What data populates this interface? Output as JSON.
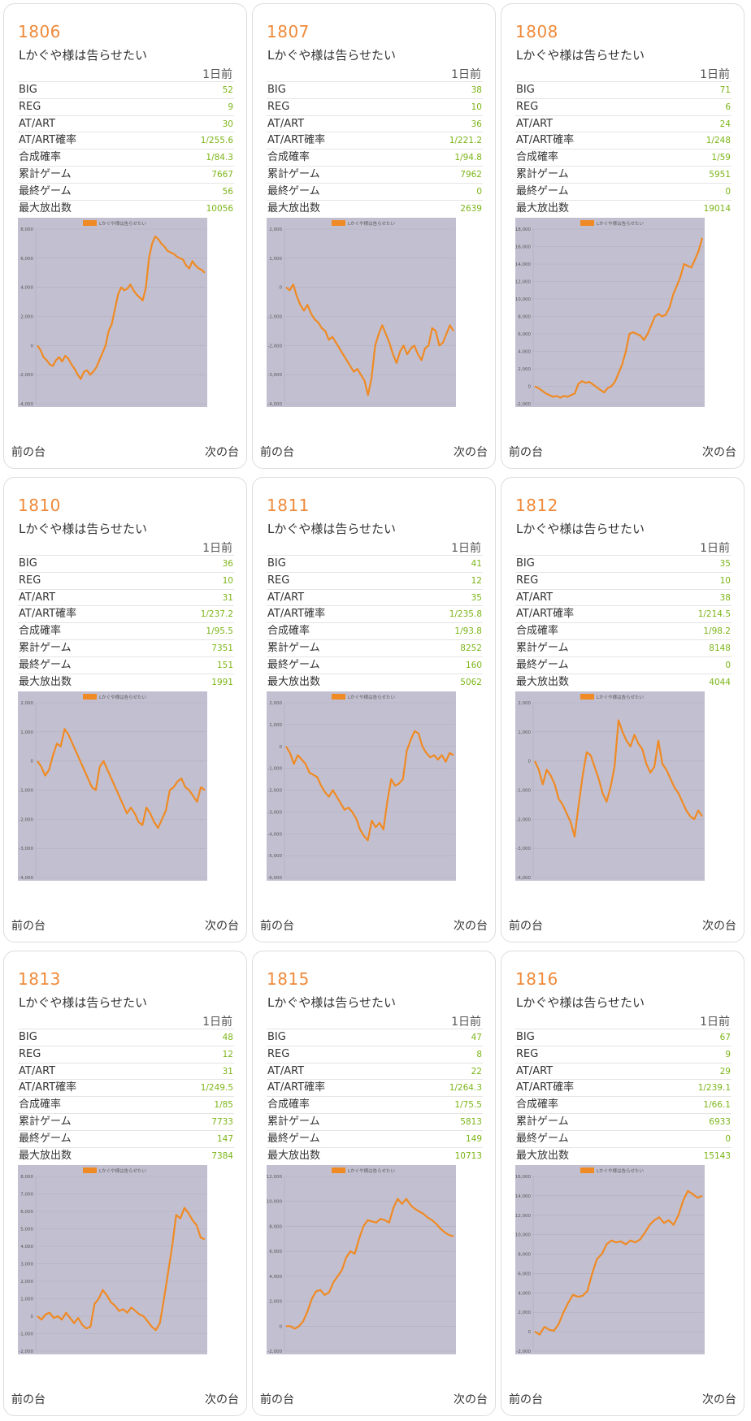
{
  "common": {
    "machine_title": "Lかぐや様は告らせたい",
    "day_label": "1日前",
    "prev_label": "前の台",
    "next_label": "次の台",
    "legend_label": "Lかぐや様は告らせたい",
    "stat_labels": [
      "BIG",
      "REG",
      "AT/ART",
      "AT/ART確率",
      "合成確率",
      "累計ゲーム",
      "最終ゲーム",
      "最大放出数"
    ],
    "colors": {
      "accent": "#ef8a3a",
      "value": "#7cb518",
      "line": "#f08a24",
      "plot_bg": "#c2c0d0"
    }
  },
  "cards": [
    {
      "machine_no": "1806",
      "stats": [
        "52",
        "9",
        "30",
        "1/255.6",
        "1/84.3",
        "7667",
        "56",
        "10056"
      ],
      "chart_data": {
        "type": "line",
        "legend": "Lかぐや様は告らせたい",
        "grid": true,
        "ylim": [
          -4000,
          8000
        ],
        "y_ticks": [
          "-4,000",
          "-2,000",
          "0",
          "2,000",
          "4,000",
          "6,000",
          "8,000"
        ],
        "series": [
          {
            "name": "Lかぐや様は告らせたい",
            "values": [
              0,
              -300,
              -800,
              -1000,
              -1300,
              -1400,
              -1000,
              -800,
              -1100,
              -700,
              -900,
              -1300,
              -1600,
              -2000,
              -2300,
              -1800,
              -1700,
              -2000,
              -1800,
              -1500,
              -1000,
              -500,
              0,
              1000,
              1500,
              2500,
              3500,
              4000,
              3800,
              3900,
              4200,
              3800,
              3500,
              3300,
              3100,
              4000,
              6000,
              7000,
              7500,
              7300,
              7000,
              6800,
              6500,
              6400,
              6300,
              6100,
              6000,
              5900,
              5500,
              5300,
              5800,
              5500,
              5300,
              5200,
              5000
            ]
          }
        ]
      }
    },
    {
      "machine_no": "1807",
      "stats": [
        "38",
        "10",
        "36",
        "1/221.2",
        "1/94.8",
        "7962",
        "0",
        "2639"
      ],
      "chart_data": {
        "type": "line",
        "legend": "Lかぐや様は告らせたい",
        "grid": true,
        "ylim": [
          -4000,
          2000
        ],
        "y_ticks": [
          "-4,000",
          "-3,000",
          "-2,000",
          "-1,000",
          "0",
          "1,000",
          "2,000"
        ],
        "series": [
          {
            "name": "Lかぐや様は告らせたい",
            "values": [
              0,
              -100,
              100,
              -300,
              -600,
              -800,
              -600,
              -900,
              -1100,
              -1200,
              -1400,
              -1500,
              -1800,
              -1700,
              -1900,
              -2100,
              -2300,
              -2500,
              -2700,
              -2900,
              -2800,
              -3000,
              -3200,
              -3700,
              -3100,
              -2000,
              -1600,
              -1300,
              -1600,
              -1900,
              -2300,
              -2600,
              -2200,
              -2000,
              -2300,
              -2100,
              -2000,
              -2300,
              -2500,
              -2100,
              -2000,
              -1400,
              -1500,
              -2000,
              -1900,
              -1600,
              -1300,
              -1500
            ]
          }
        ]
      }
    },
    {
      "machine_no": "1808",
      "stats": [
        "71",
        "6",
        "24",
        "1/248",
        "1/59",
        "5951",
        "0",
        "19014"
      ],
      "chart_data": {
        "type": "line",
        "legend": "Lかぐや様は告らせたい",
        "grid": true,
        "ylim": [
          -2000,
          18000
        ],
        "y_ticks": [
          "-2,000",
          "0",
          "2,000",
          "4,000",
          "6,000",
          "8,000",
          "10,000",
          "12,000",
          "14,000",
          "16,000",
          "18,000"
        ],
        "series": [
          {
            "name": "Lかぐや様は告らせたい",
            "values": [
              0,
              -200,
              -500,
              -800,
              -1000,
              -1200,
              -1100,
              -1300,
              -1100,
              -1200,
              -1000,
              -800,
              300,
              600,
              400,
              500,
              200,
              -100,
              -400,
              -700,
              -200,
              0,
              500,
              1500,
              2500,
              4000,
              6000,
              6200,
              6000,
              5800,
              5300,
              6000,
              7000,
              8000,
              8300,
              8000,
              8200,
              9000,
              10500,
              11500,
              12500,
              14000,
              13800,
              13600,
              14500,
              15500,
              17000
            ]
          }
        ]
      }
    },
    {
      "machine_no": "1810",
      "stats": [
        "36",
        "10",
        "31",
        "1/237.2",
        "1/95.5",
        "7351",
        "151",
        "1991"
      ],
      "chart_data": {
        "type": "line",
        "legend": "Lかぐや様は告らせたい",
        "grid": true,
        "ylim": [
          -4000,
          2000
        ],
        "y_ticks": [
          "-4,000",
          "-3,000",
          "-2,000",
          "-1,000",
          "0",
          "1,000",
          "2,000"
        ],
        "series": [
          {
            "name": "Lかぐや様は告らせたい",
            "values": [
              0,
              -200,
              -500,
              -300,
              200,
              600,
              500,
              1100,
              900,
              600,
              300,
              0,
              -300,
              -600,
              -900,
              -1000,
              -200,
              0,
              -300,
              -600,
              -900,
              -1200,
              -1500,
              -1800,
              -1600,
              -1800,
              -2100,
              -2200,
              -1600,
              -1800,
              -2100,
              -2300,
              -2000,
              -1700,
              -1000,
              -900,
              -700,
              -600,
              -900,
              -1000,
              -1200,
              -1400,
              -900,
              -1000
            ]
          }
        ]
      }
    },
    {
      "machine_no": "1811",
      "stats": [
        "41",
        "12",
        "35",
        "1/235.8",
        "1/93.8",
        "8252",
        "160",
        "5062"
      ],
      "chart_data": {
        "type": "line",
        "legend": "Lかぐや様は告らせたい",
        "grid": true,
        "ylim": [
          -6000,
          2000
        ],
        "y_ticks": [
          "-6,000",
          "-5,000",
          "-4,000",
          "-3,000",
          "-2,000",
          "-1,000",
          "0",
          "1,000",
          "2,000"
        ],
        "series": [
          {
            "name": "Lかぐや様は告らせたい",
            "values": [
              0,
              -300,
              -800,
              -400,
              -600,
              -800,
              -1200,
              -1300,
              -1400,
              -1800,
              -2100,
              -2300,
              -2000,
              -2300,
              -2600,
              -2900,
              -2800,
              -3000,
              -3300,
              -3800,
              -4100,
              -4300,
              -3400,
              -3700,
              -3500,
              -3800,
              -2500,
              -1500,
              -1800,
              -1700,
              -1500,
              -200,
              300,
              700,
              600,
              0,
              -300,
              -500,
              -400,
              -600,
              -400,
              -700,
              -300,
              -400
            ]
          }
        ]
      }
    },
    {
      "machine_no": "1812",
      "stats": [
        "35",
        "10",
        "38",
        "1/214.5",
        "1/98.2",
        "8148",
        "0",
        "4044"
      ],
      "chart_data": {
        "type": "line",
        "legend": "Lかぐや様は告らせたい",
        "grid": true,
        "ylim": [
          -4000,
          2000
        ],
        "y_ticks": [
          "-4,000",
          "-3,000",
          "-2,000",
          "-1,000",
          "0",
          "1,000",
          "2,000"
        ],
        "series": [
          {
            "name": "Lかぐや様は告らせたい",
            "values": [
              0,
              -300,
              -800,
              -300,
              -500,
              -800,
              -1300,
              -1500,
              -1800,
              -2100,
              -2600,
              -1500,
              -500,
              300,
              200,
              -200,
              -600,
              -1100,
              -1400,
              -900,
              -200,
              1400,
              1000,
              700,
              500,
              900,
              600,
              400,
              -100,
              -400,
              -200,
              700,
              -100,
              -300,
              -600,
              -900,
              -1100,
              -1400,
              -1700,
              -1900,
              -2000,
              -1700,
              -1900
            ]
          }
        ]
      }
    },
    {
      "machine_no": "1813",
      "stats": [
        "48",
        "12",
        "31",
        "1/249.5",
        "1/85",
        "7733",
        "147",
        "7384"
      ],
      "chart_data": {
        "type": "line",
        "legend": "Lかぐや様は告らせたい",
        "grid": true,
        "ylim": [
          -2000,
          8000
        ],
        "y_ticks": [
          "-2,000",
          "-1,000",
          "0",
          "1,000",
          "2,000",
          "3,000",
          "4,000",
          "5,000",
          "6,000",
          "7,000",
          "8,000"
        ],
        "series": [
          {
            "name": "Lかぐや様は告らせたい",
            "values": [
              0,
              -200,
              100,
              200,
              -100,
              0,
              -200,
              200,
              -100,
              -400,
              -100,
              -500,
              -700,
              -600,
              700,
              1000,
              1500,
              1200,
              800,
              600,
              300,
              400,
              200,
              500,
              300,
              100,
              0,
              -300,
              -600,
              -800,
              -400,
              1000,
              2500,
              4000,
              5800,
              5600,
              6200,
              5900,
              5500,
              5200,
              4500,
              4400
            ]
          }
        ]
      }
    },
    {
      "machine_no": "1815",
      "stats": [
        "47",
        "8",
        "22",
        "1/264.3",
        "1/75.5",
        "5813",
        "149",
        "10713"
      ],
      "chart_data": {
        "type": "line",
        "legend": "Lかぐや様は告らせたい",
        "grid": true,
        "ylim": [
          -2000,
          12000
        ],
        "y_ticks": [
          "-2,000",
          "0",
          "2,000",
          "4,000",
          "6,000",
          "8,000",
          "10,000",
          "12,000"
        ],
        "series": [
          {
            "name": "Lかぐや様は告らせたい",
            "values": [
              0,
              0,
              -200,
              0,
              400,
              1200,
              2200,
              2800,
              2900,
              2500,
              2700,
              3500,
              4000,
              4500,
              5500,
              6000,
              5800,
              7000,
              8000,
              8500,
              8400,
              8300,
              8600,
              8500,
              8300,
              9500,
              10200,
              9800,
              10200,
              9700,
              9400,
              9200,
              9000,
              8700,
              8500,
              8200,
              7800,
              7500,
              7300,
              7200
            ]
          }
        ]
      }
    },
    {
      "machine_no": "1816",
      "stats": [
        "67",
        "9",
        "29",
        "1/239.1",
        "1/66.1",
        "6933",
        "0",
        "15143"
      ],
      "chart_data": {
        "type": "line",
        "legend": "Lかぐや様は告らせたい",
        "grid": true,
        "ylim": [
          -2000,
          16000
        ],
        "y_ticks": [
          "-2,000",
          "0",
          "2,000",
          "4,000",
          "6,000",
          "8,000",
          "10,000",
          "12,000",
          "14,000",
          "16,000"
        ],
        "series": [
          {
            "name": "Lかぐや様は告らせたい",
            "values": [
              0,
              -300,
              500,
              200,
              100,
              800,
              2000,
              3000,
              3800,
              3600,
              3700,
              4200,
              6000,
              7500,
              8000,
              9000,
              9400,
              9200,
              9300,
              9000,
              9400,
              9200,
              9500,
              10200,
              11000,
              11500,
              11800,
              11200,
              11500,
              11000,
              12000,
              13500,
              14500,
              14200,
              13800,
              14000
            ]
          }
        ]
      }
    }
  ]
}
